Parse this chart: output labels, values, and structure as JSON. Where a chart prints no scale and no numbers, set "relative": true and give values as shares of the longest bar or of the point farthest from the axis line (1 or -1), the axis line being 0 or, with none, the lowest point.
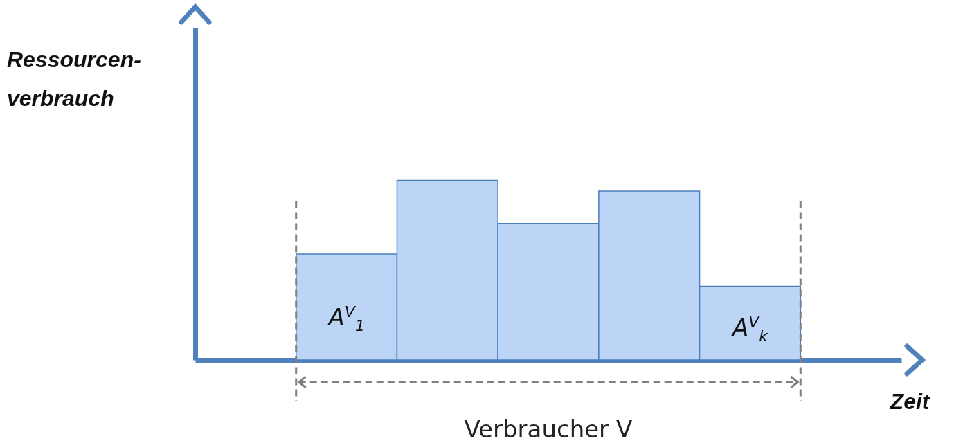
{
  "chart_data": {
    "type": "bar",
    "relative": true,
    "xlabel": "Zeit",
    "categories": [
      null,
      null,
      null,
      null,
      null
    ],
    "series": [
      {
        "color": "#bcd5f7",
        "values": [
          0.59,
          1,
          0.76,
          0.94,
          0.41
        ]
      }
    ],
    "annotations": [
      "A$^{V}$$_{1}$",
      "A$^{V}$$_{k}$",
      "Verbraucher V",
      "Ressourcen-verbrauch"
    ]
  }
}
